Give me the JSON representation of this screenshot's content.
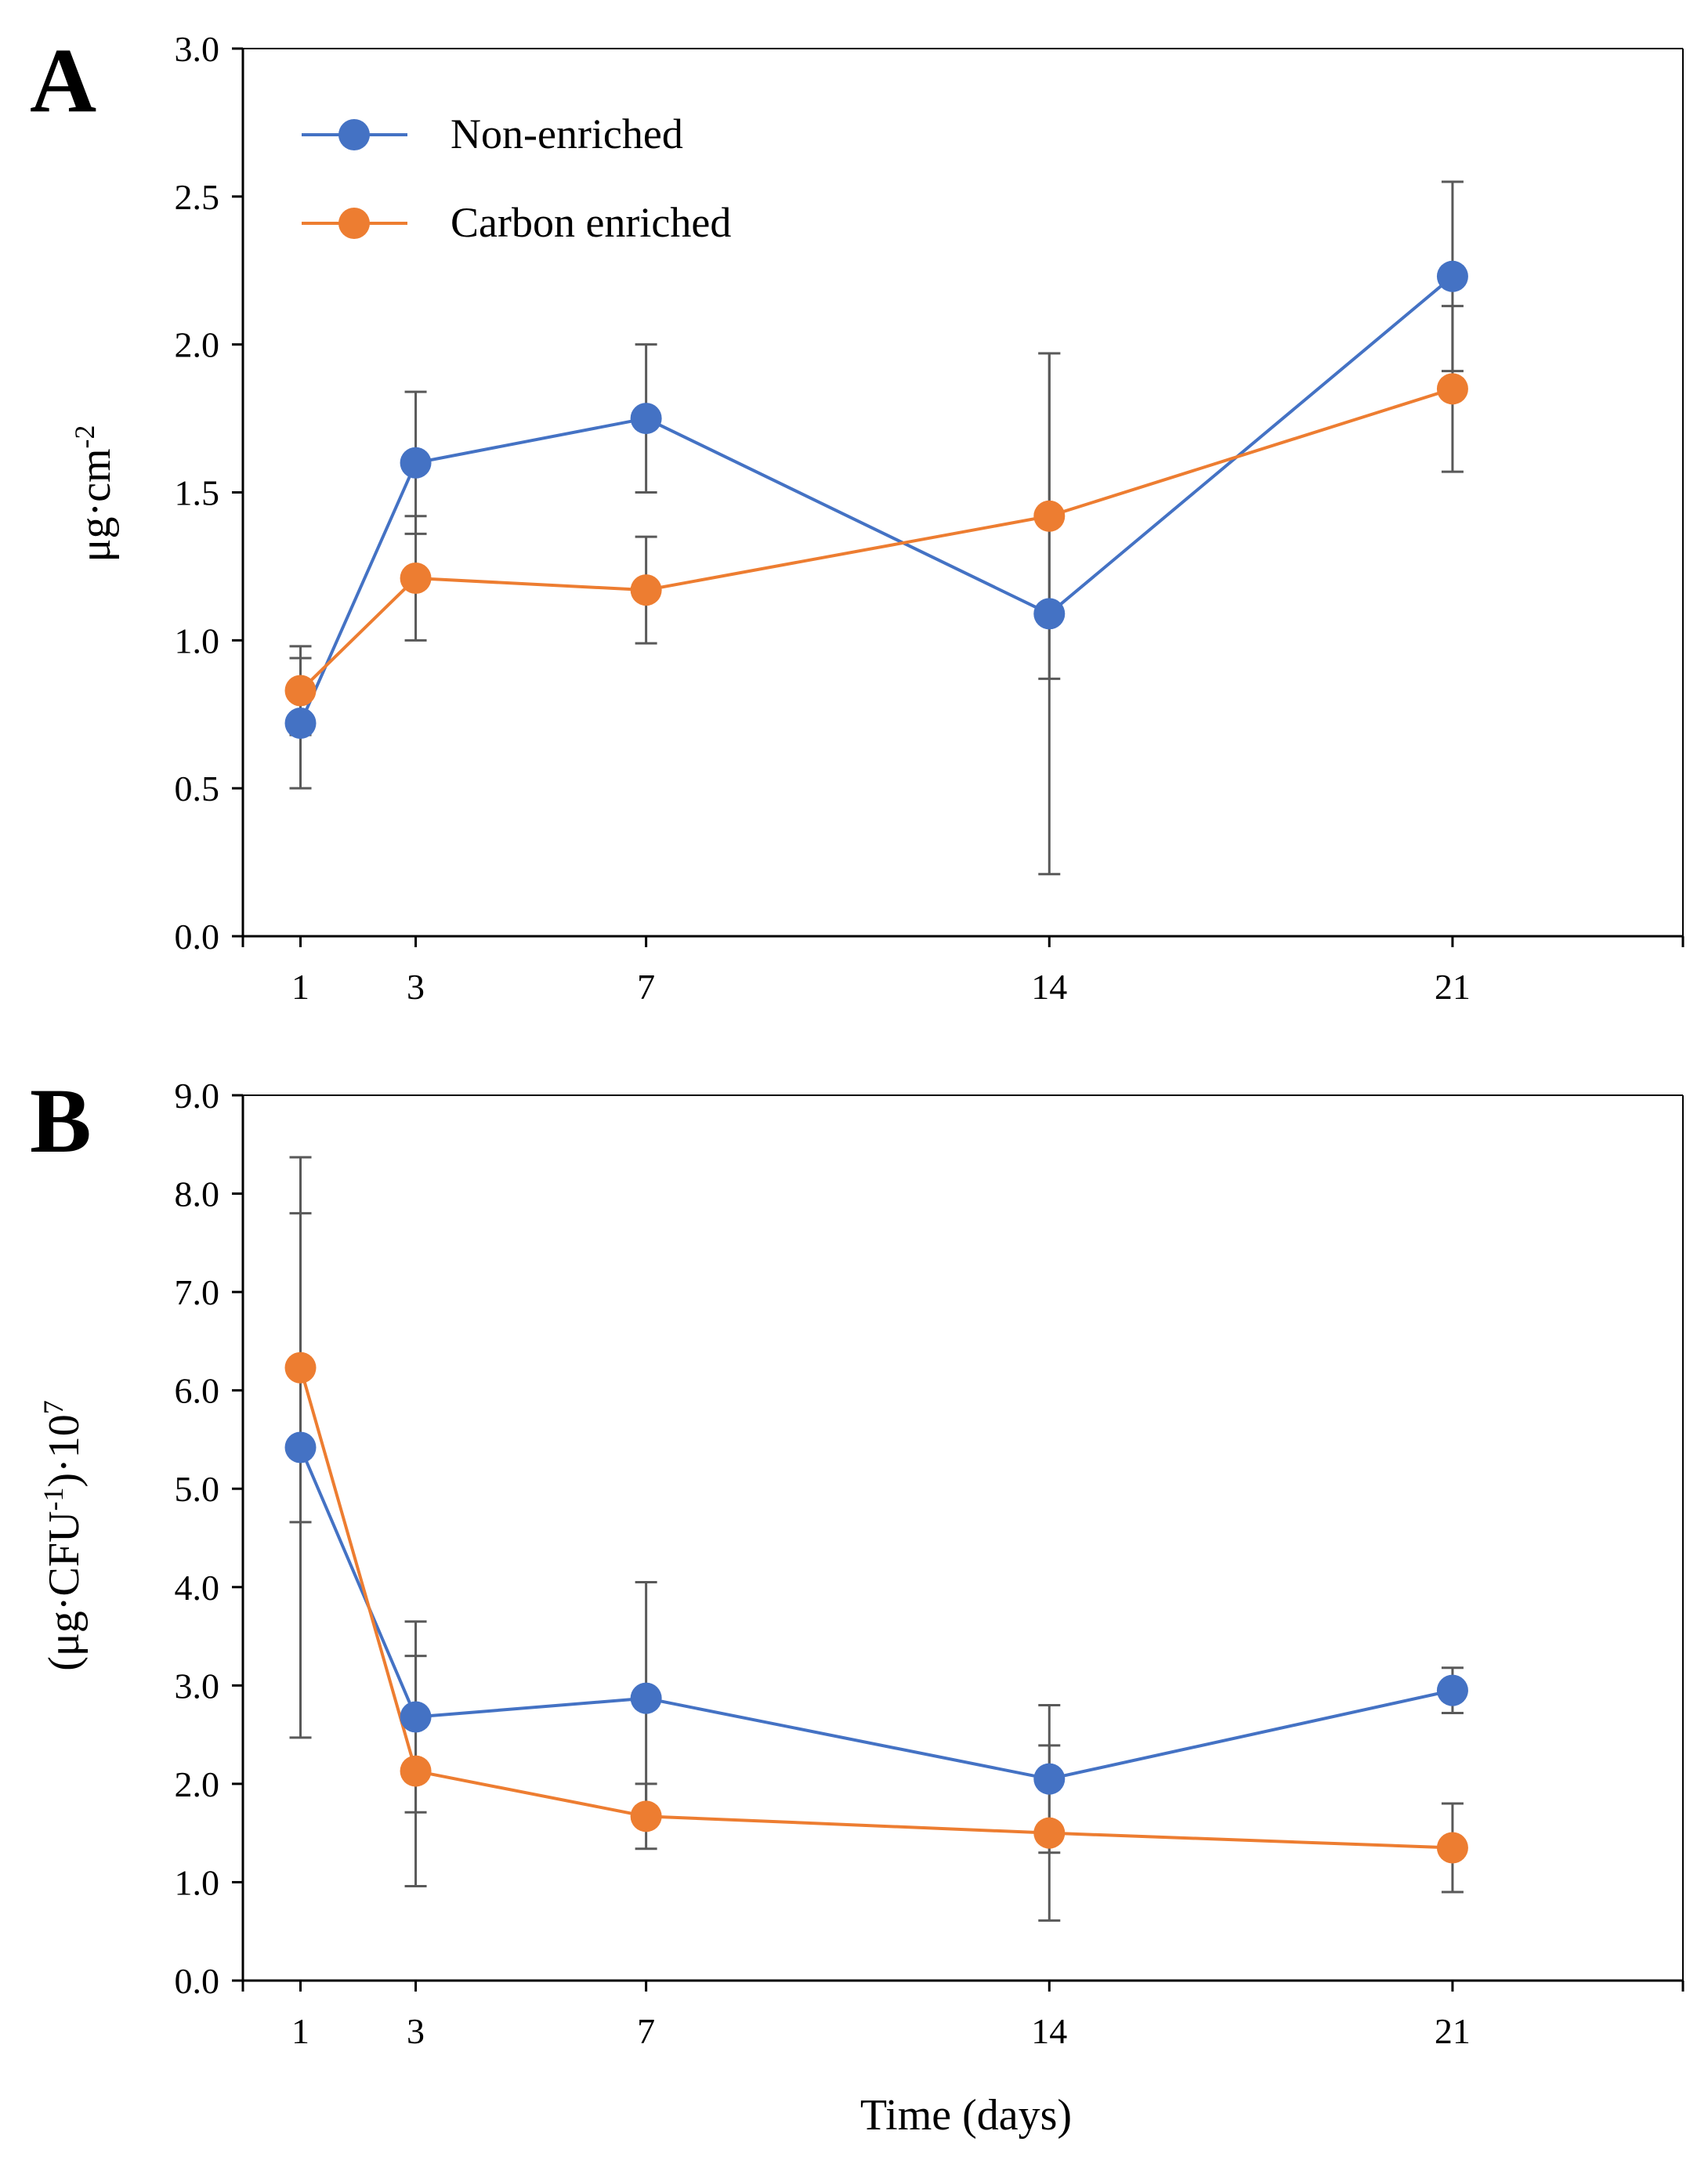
{
  "colors": {
    "non_enriched": "#4472C4",
    "carbon_enriched": "#ED7D31",
    "error_bar": "#595959",
    "axis": "#000000"
  },
  "xlabel": "Time (days)",
  "legend": [
    {
      "name": "Non-enriched",
      "color": "#4472C4"
    },
    {
      "name": "Carbon enriched",
      "color": "#ED7D31"
    }
  ],
  "chart_data": [
    {
      "panel": "A",
      "type": "line",
      "x": [
        1,
        3,
        7,
        14,
        21
      ],
      "xlim": [
        0,
        25
      ],
      "xticks": [
        "1",
        "3",
        "7",
        "14",
        "21"
      ],
      "ylim": [
        0,
        3.0
      ],
      "yticks": [
        "0.0",
        "0.5",
        "1.0",
        "1.5",
        "2.0",
        "2.5",
        "3.0"
      ],
      "ytick_values": [
        0,
        0.5,
        1.0,
        1.5,
        2.0,
        2.5,
        3.0
      ],
      "ylabel": "μg·cm",
      "ylabel_sup": "-2",
      "legend_position": "top-left",
      "series": [
        {
          "name": "Non-enriched",
          "values": [
            0.72,
            1.6,
            1.75,
            1.09,
            2.23
          ],
          "errors": [
            0.22,
            0.24,
            0.25,
            0.88,
            0.32
          ]
        },
        {
          "name": "Carbon enriched",
          "values": [
            0.83,
            1.21,
            1.17,
            1.42,
            1.85
          ],
          "errors": [
            0.15,
            0.21,
            0.18,
            0.55,
            0.28
          ]
        }
      ]
    },
    {
      "panel": "B",
      "type": "line",
      "x": [
        1,
        3,
        7,
        14,
        21
      ],
      "xlim": [
        0,
        25
      ],
      "xticks": [
        "1",
        "3",
        "7",
        "14",
        "21"
      ],
      "ylim": [
        0,
        9.0
      ],
      "yticks": [
        "0.0",
        "1.0",
        "2.0",
        "3.0",
        "4.0",
        "5.0",
        "6.0",
        "7.0",
        "8.0",
        "9.0"
      ],
      "ytick_values": [
        0,
        1,
        2,
        3,
        4,
        5,
        6,
        7,
        8,
        9
      ],
      "ylabel_prefix": "(μg·CFU",
      "ylabel_sup1": "-1",
      "ylabel_mid": ")·10",
      "ylabel_sup2": "7",
      "series": [
        {
          "name": "Non-enriched",
          "values": [
            5.42,
            2.68,
            2.87,
            2.05,
            2.95
          ],
          "errors": [
            2.95,
            0.97,
            1.18,
            0.75,
            0.23
          ]
        },
        {
          "name": "Carbon enriched",
          "values": [
            6.23,
            2.13,
            1.67,
            1.5,
            1.35
          ],
          "errors": [
            1.57,
            1.17,
            0.33,
            0.89,
            0.45
          ]
        }
      ]
    }
  ]
}
